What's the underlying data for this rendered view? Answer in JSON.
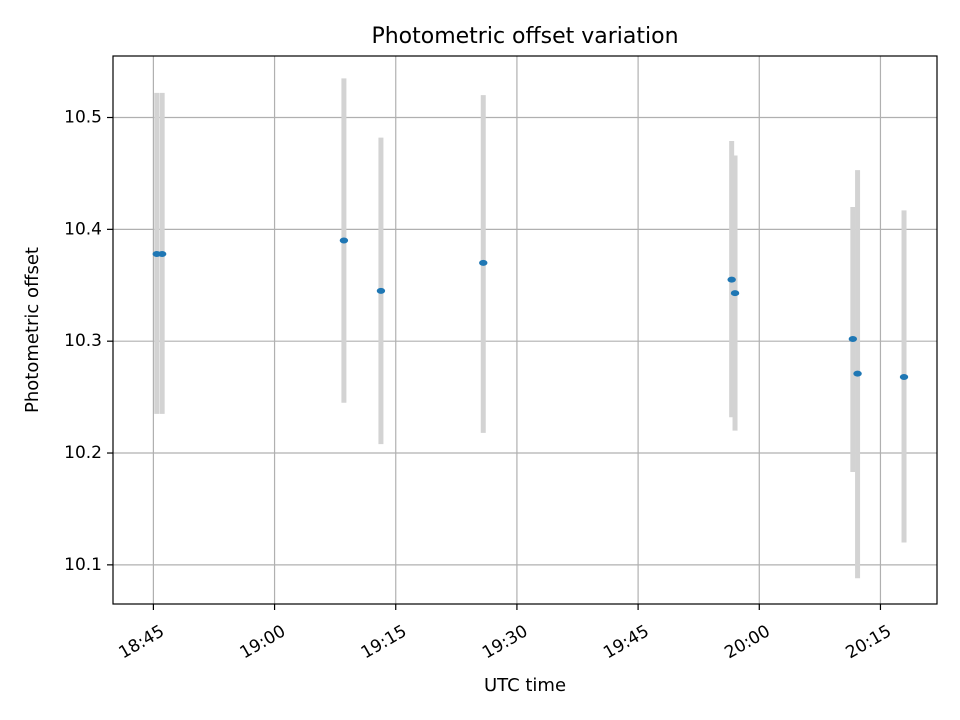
{
  "chart_data": {
    "type": "scatter",
    "title": "Photometric offset variation",
    "xlabel": "UTC time",
    "ylabel": "Photometric offset",
    "x_type": "time",
    "xlim": [
      "18:40",
      "20:22"
    ],
    "ylim": [
      10.065,
      10.555
    ],
    "x_ticks": [
      "18:45",
      "19:00",
      "19:15",
      "19:30",
      "19:45",
      "20:00",
      "20:15"
    ],
    "y_ticks": [
      "10.1",
      "10.2",
      "10.3",
      "10.4",
      "10.5"
    ],
    "grid": true,
    "legend": "none",
    "colors": {
      "point": "#1f77b4",
      "errorbar": "#d3d3d3",
      "grid": "#b0b0b0",
      "axis": "#000000"
    },
    "points": [
      {
        "x": "18:45:25",
        "y": 10.378,
        "ylow": 10.235,
        "yhigh": 10.522
      },
      {
        "x": "18:46:05",
        "y": 10.378,
        "ylow": 10.235,
        "yhigh": 10.522
      },
      {
        "x": "19:08:35",
        "y": 10.39,
        "ylow": 10.245,
        "yhigh": 10.535
      },
      {
        "x": "19:13:10",
        "y": 10.345,
        "ylow": 10.208,
        "yhigh": 10.482
      },
      {
        "x": "19:25:50",
        "y": 10.37,
        "ylow": 10.218,
        "yhigh": 10.52
      },
      {
        "x": "19:56:35",
        "y": 10.355,
        "ylow": 10.232,
        "yhigh": 10.479
      },
      {
        "x": "19:57:00",
        "y": 10.343,
        "ylow": 10.22,
        "yhigh": 10.466
      },
      {
        "x": "20:11:35",
        "y": 10.302,
        "ylow": 10.183,
        "yhigh": 10.42
      },
      {
        "x": "20:12:10",
        "y": 10.271,
        "ylow": 10.088,
        "yhigh": 10.453
      },
      {
        "x": "20:17:55",
        "y": 10.268,
        "ylow": 10.12,
        "yhigh": 10.417
      }
    ]
  }
}
